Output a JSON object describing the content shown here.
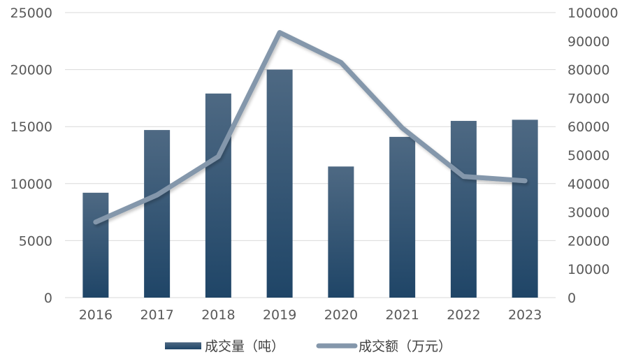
{
  "chart_data": {
    "type": "bar",
    "categories": [
      "2016",
      "2017",
      "2018",
      "2019",
      "2020",
      "2021",
      "2022",
      "2023"
    ],
    "series": [
      {
        "name": "成交量（吨）",
        "kind": "bar",
        "axis": "left",
        "values": [
          9200,
          14700,
          17900,
          20000,
          11500,
          14100,
          15500,
          15600
        ],
        "color": "#2a4c6e"
      },
      {
        "name": "成交额（万元）",
        "kind": "line",
        "axis": "right",
        "values": [
          26500,
          36000,
          49500,
          93000,
          82500,
          59500,
          42500,
          41000
        ],
        "color": "#8497ab"
      }
    ],
    "y_left": {
      "min": 0,
      "max": 25000,
      "ticks": [
        "0",
        "5000",
        "10000",
        "15000",
        "20000",
        "25000"
      ]
    },
    "y_right": {
      "min": 0,
      "max": 100000,
      "ticks": [
        "0",
        "10000",
        "20000",
        "30000",
        "40000",
        "50000",
        "60000",
        "70000",
        "80000",
        "90000",
        "100000"
      ]
    },
    "grid": true,
    "legend_position": "bottom"
  }
}
